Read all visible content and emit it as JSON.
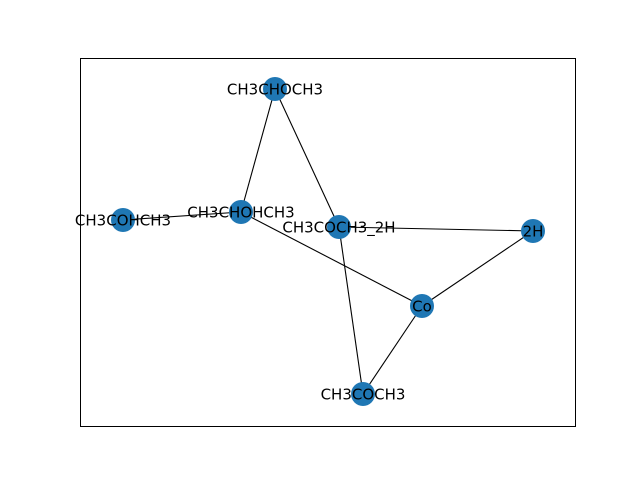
{
  "graph": {
    "node_color": "#1f77b4",
    "edge_color": "#000000",
    "nodes": [
      {
        "id": "CH3CHOCH3",
        "label": "CH3CHOCH3"
      },
      {
        "id": "CH3COHCH3",
        "label": "CH3COHCH3"
      },
      {
        "id": "CH3CHOHCH3",
        "label": "CH3CHOHCH3"
      },
      {
        "id": "CH3COCH3_2H",
        "label": "CH3COCH3_2H"
      },
      {
        "id": "2H",
        "label": "2H"
      },
      {
        "id": "Co",
        "label": "Co"
      },
      {
        "id": "CH3COCH3",
        "label": "CH3COCH3"
      }
    ],
    "edges": [
      {
        "source": "CH3CHOCH3",
        "target": "CH3CHOHCH3"
      },
      {
        "source": "CH3CHOCH3",
        "target": "CH3COCH3_2H"
      },
      {
        "source": "CH3COHCH3",
        "target": "CH3CHOHCH3"
      },
      {
        "source": "CH3CHOHCH3",
        "target": "Co"
      },
      {
        "source": "CH3COCH3_2H",
        "target": "2H"
      },
      {
        "source": "CH3COCH3_2H",
        "target": "CH3COCH3"
      },
      {
        "source": "2H",
        "target": "Co"
      },
      {
        "source": "Co",
        "target": "CH3COCH3"
      }
    ]
  }
}
